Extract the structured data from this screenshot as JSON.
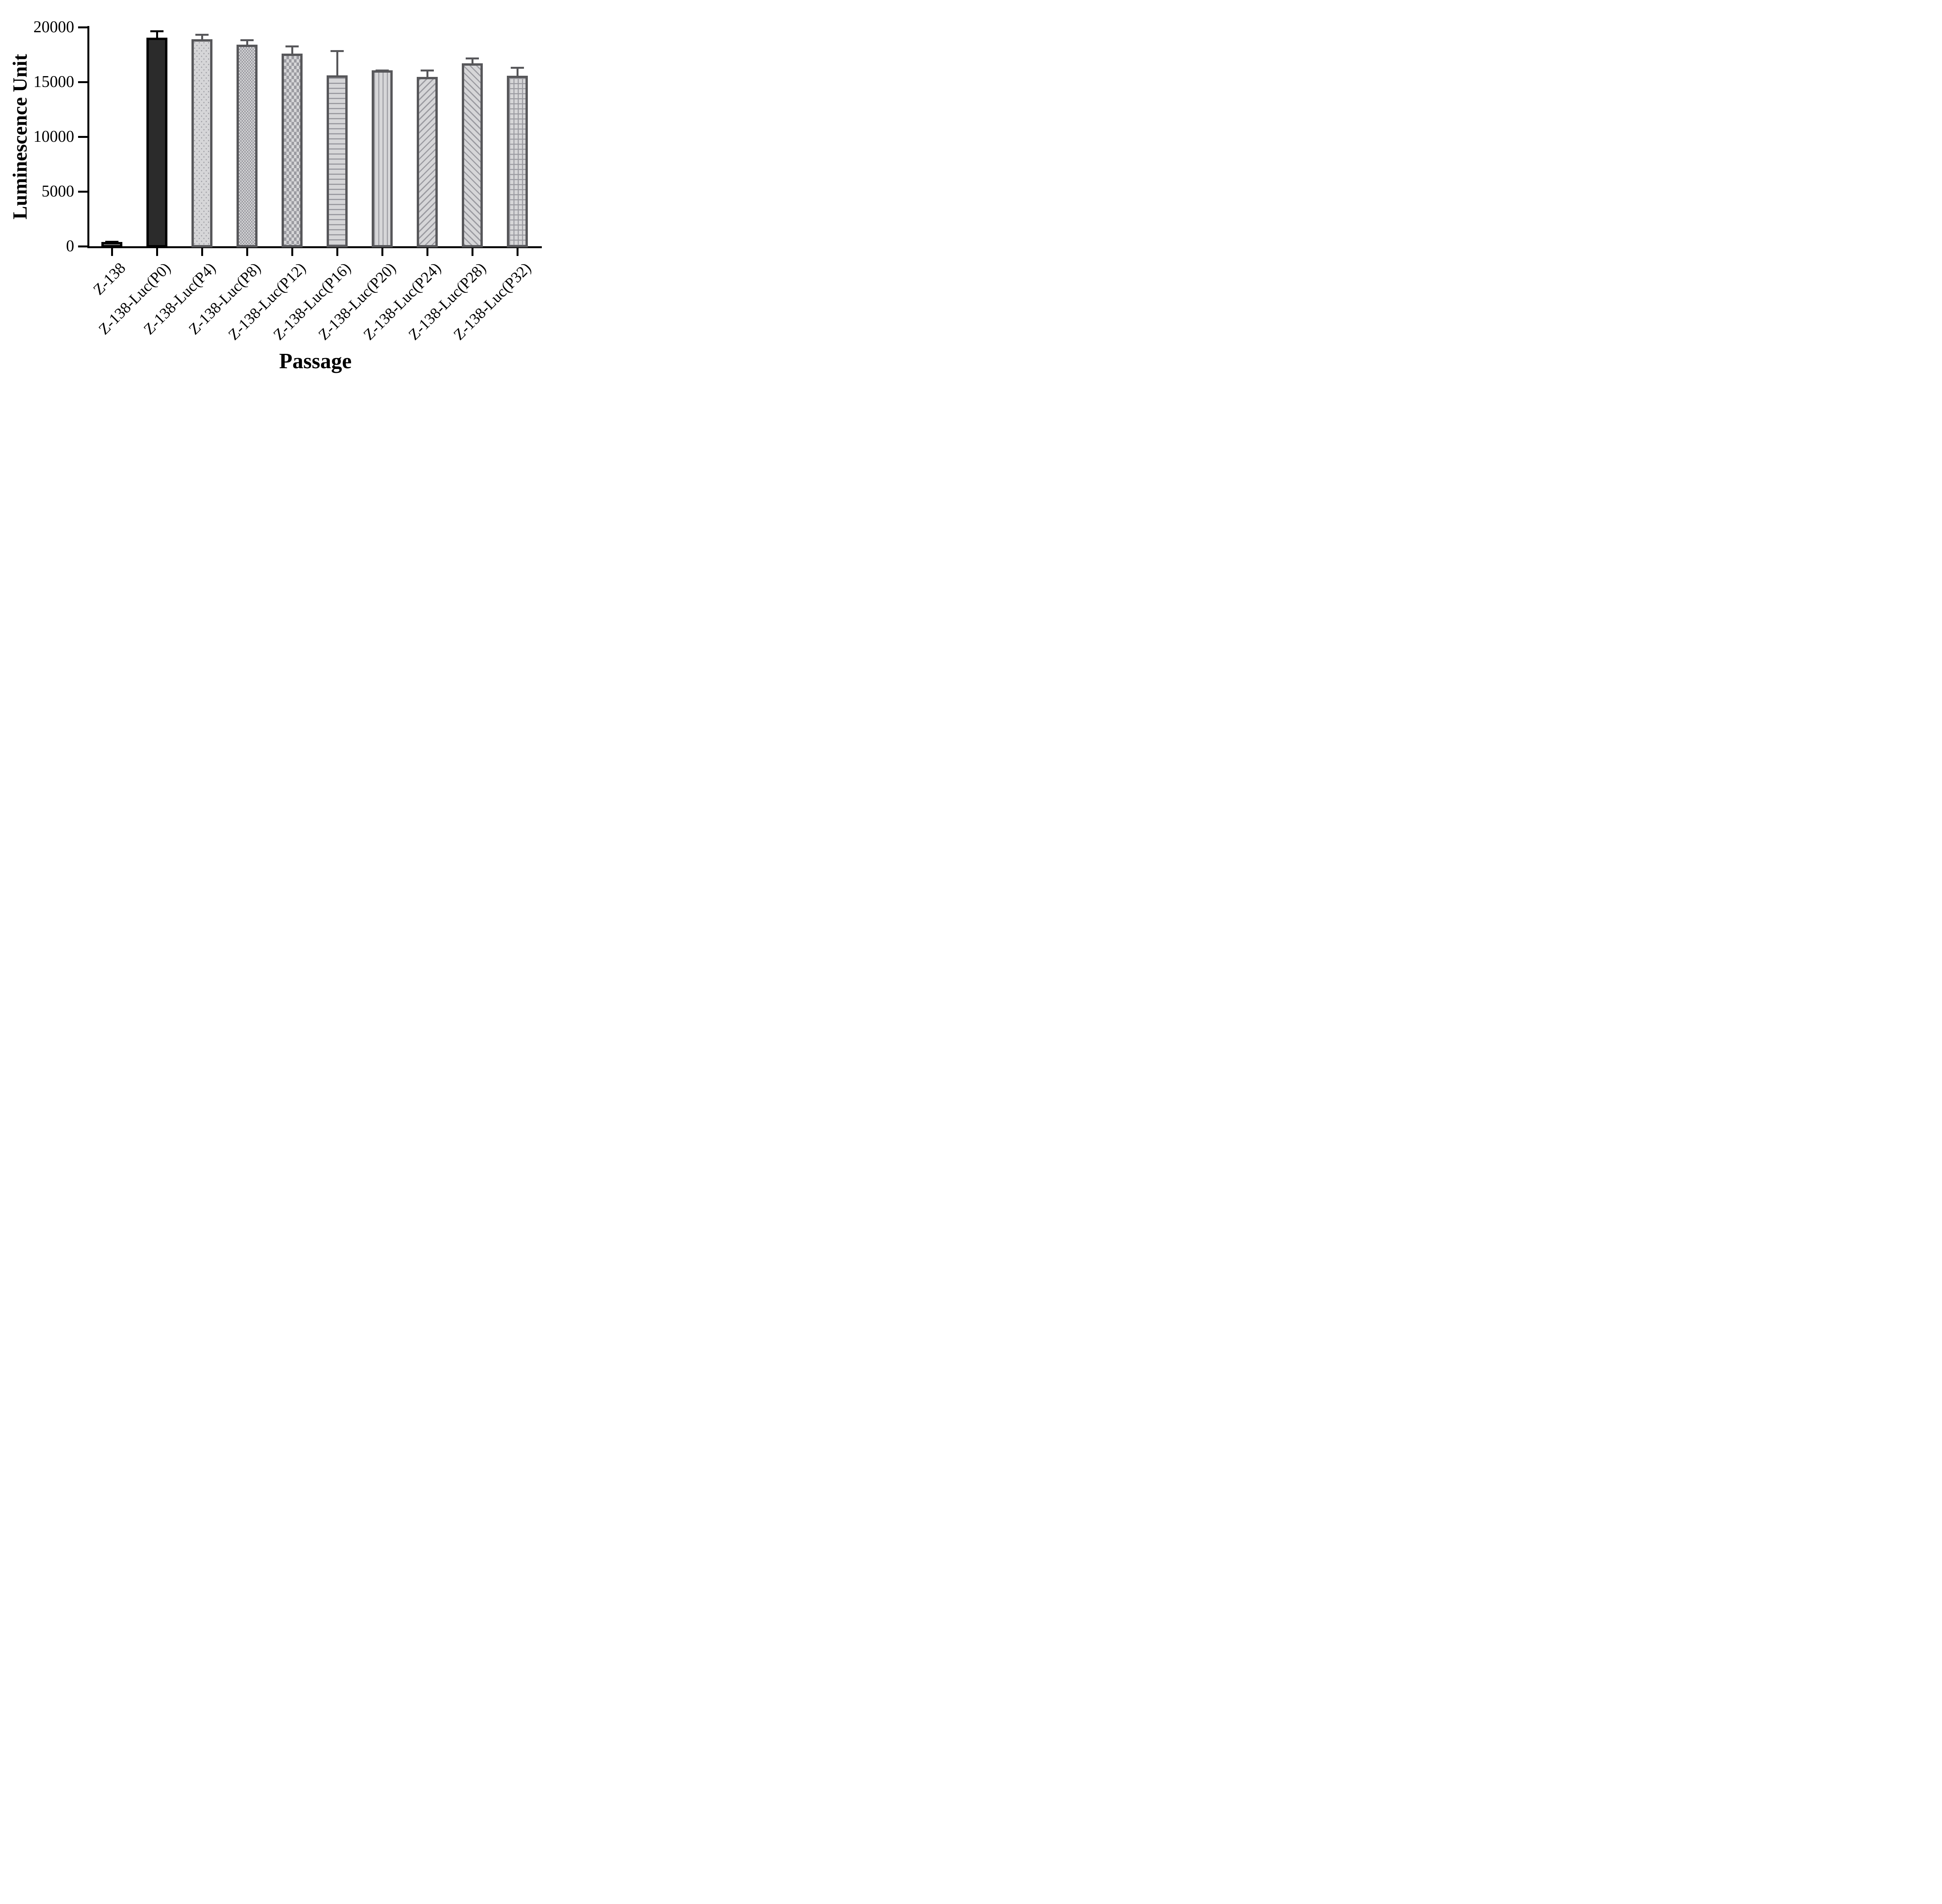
{
  "figure": {
    "background": "#ffffff",
    "y_axis_title": "Luminescence Unit",
    "x_axis_title": "Passage"
  },
  "chart_data": {
    "type": "bar",
    "title": "",
    "xlabel": "Passage",
    "ylabel": "Luminescence Unit",
    "ylim": [
      0,
      20000
    ],
    "yticks": [
      0,
      5000,
      10000,
      15000,
      20000
    ],
    "ytick_labels": [
      "0",
      "5000",
      "10000",
      "15000",
      "20000"
    ],
    "grid": false,
    "legend_position": "none",
    "categories": [
      "Z-138",
      "Z-138-Luc(P0)",
      "Z-138-Luc(P4)",
      "Z-138-Luc(P8)",
      "Z-138-Luc(P12)",
      "Z-138-Luc(P16)",
      "Z-138-Luc(P20)",
      "Z-138-Luc(P24)",
      "Z-138-Luc(P28)",
      "Z-138-Luc(P32)"
    ],
    "values": [
      400,
      19050,
      18900,
      18400,
      17600,
      15600,
      16050,
      15450,
      16700,
      15550
    ],
    "errors_plus": [
      100,
      650,
      500,
      500,
      750,
      2300,
      100,
      700,
      550,
      850
    ],
    "error_bar_direction": "up-only",
    "bar_styles": [
      {
        "pattern": "solid",
        "fill": "#8a8a8a",
        "stroke": "#000000"
      },
      {
        "pattern": "solid",
        "fill": "#2b2b2b",
        "stroke": "#000000"
      },
      {
        "pattern": "dots",
        "fill": "#d6d6d8",
        "stroke": "#57575a"
      },
      {
        "pattern": "checker-fine",
        "fill": "#d6d6d8",
        "stroke": "#57575a"
      },
      {
        "pattern": "checker-coarse",
        "fill": "#d6d6d8",
        "stroke": "#57575a"
      },
      {
        "pattern": "hlines",
        "fill": "#d6d6d8",
        "stroke": "#57575a"
      },
      {
        "pattern": "vlines",
        "fill": "#d6d6d8",
        "stroke": "#57575a"
      },
      {
        "pattern": "diag-up",
        "fill": "#d6d6d8",
        "stroke": "#57575a"
      },
      {
        "pattern": "diag-down",
        "fill": "#d6d6d8",
        "stroke": "#57575a"
      },
      {
        "pattern": "grid",
        "fill": "#d6d6d8",
        "stroke": "#57575a"
      }
    ],
    "colors": {
      "axis": "#000000",
      "pattern_background": "#d6d6d8",
      "pattern_gray": "#9a9aa0",
      "patterned_bar_stroke": "#57575a",
      "solid_bar_dark_fill": "#2b2b2b",
      "first_bar_fill": "#8a8a8a",
      "text": "#000000"
    }
  }
}
